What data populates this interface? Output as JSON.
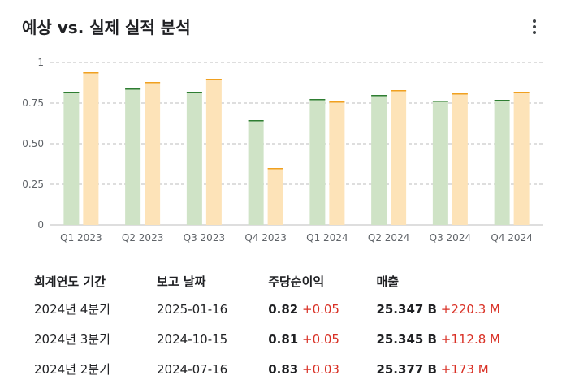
{
  "header": {
    "title": "예상 vs. 실제 실적 분석",
    "menu_icon": "more-vert-icon"
  },
  "colors": {
    "actual_fill": "#cfe3c6",
    "actual_top": "#2e7d32",
    "estimate_fill": "#fde3b8",
    "estimate_top": "#f0a020",
    "delta": "#d93025"
  },
  "chart_data": {
    "type": "bar",
    "categories": [
      "Q1 2023",
      "Q2 2023",
      "Q3 2023",
      "Q4 2023",
      "Q1 2024",
      "Q2 2024",
      "Q3 2024",
      "Q4 2024"
    ],
    "series": [
      {
        "values": [
          0.82,
          0.84,
          0.82,
          0.645,
          0.775,
          0.8,
          0.765,
          0.77
        ]
      },
      {
        "values": [
          0.94,
          0.88,
          0.9,
          0.35,
          0.76,
          0.83,
          0.81,
          0.82
        ]
      }
    ],
    "yticks": [
      "0",
      "0.25",
      "0.50",
      "0.75",
      "1"
    ],
    "ylim": [
      0,
      1
    ],
    "grid": true
  },
  "table": {
    "headers": [
      "회계연도 기간",
      "보고 날짜",
      "주당순이익",
      "매출"
    ],
    "rows": [
      {
        "period": "2024년 4분기",
        "date": "2025-01-16",
        "eps": "0.82",
        "eps_delta": "+0.05",
        "rev": "25.347 B",
        "rev_delta": "+220.3 M"
      },
      {
        "period": "2024년 3분기",
        "date": "2024-10-15",
        "eps": "0.81",
        "eps_delta": "+0.05",
        "rev": "25.345 B",
        "rev_delta": "+112.8 M"
      },
      {
        "period": "2024년 2분기",
        "date": "2024-07-16",
        "eps": "0.83",
        "eps_delta": "+0.03",
        "rev": "25.377 B",
        "rev_delta": "+173 M"
      }
    ]
  }
}
